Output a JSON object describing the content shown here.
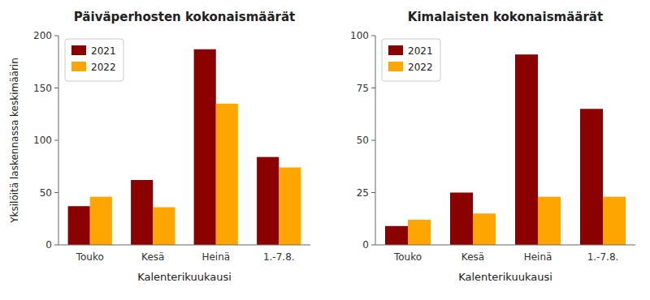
{
  "chart_data": [
    {
      "type": "bar",
      "title": "Päiväperhosten kokonaismäärät",
      "xlabel": "Kalenterikuukausi",
      "ylabel": "Yksilöitä laskennassa keskimäärin",
      "categories": [
        "Touko",
        "Kesä",
        "Heinä",
        "1.-7.8."
      ],
      "series": [
        {
          "name": "2021",
          "color": "#8B0000",
          "values": [
            37,
            62,
            187,
            84
          ]
        },
        {
          "name": "2022",
          "color": "#FFA500",
          "values": [
            46,
            36,
            135,
            74
          ]
        }
      ],
      "ylim": [
        0,
        200
      ],
      "yticks": [
        0,
        50,
        100,
        150,
        200
      ],
      "legend": "upper left",
      "grid": false
    },
    {
      "type": "bar",
      "title": "Kimalaisten kokonaismäärät",
      "xlabel": "Kalenterikuukausi",
      "categories": [
        "Touko",
        "Kesä",
        "Heinä",
        "1.-7.8."
      ],
      "series": [
        {
          "name": "2021",
          "color": "#8B0000",
          "values": [
            9,
            25,
            91,
            65
          ]
        },
        {
          "name": "2022",
          "color": "#FFA500",
          "values": [
            12,
            15,
            23,
            23
          ]
        }
      ],
      "ylim": [
        0,
        100
      ],
      "yticks": [
        0,
        25,
        50,
        75,
        100
      ],
      "legend": "upper left",
      "grid": false
    }
  ]
}
